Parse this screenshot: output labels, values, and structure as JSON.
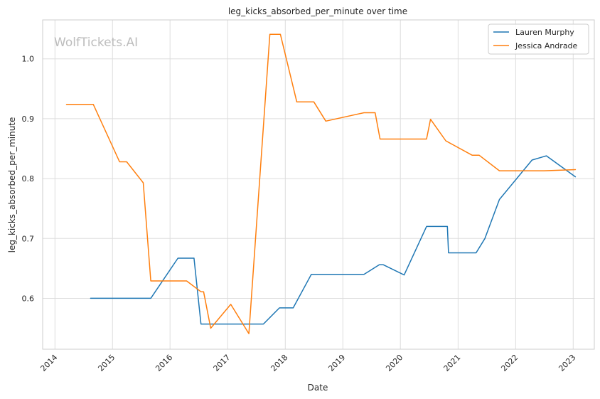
{
  "chart_data": {
    "type": "line",
    "title": "leg_kicks_absorbed_per_minute over time",
    "xlabel": "Date",
    "ylabel": "leg_kicks_absorbed_per_minute",
    "xlim": [
      "2013-10-15",
      "2023-05-15"
    ],
    "ylim": [
      0.515,
      1.065
    ],
    "x_ticks": [
      "2014",
      "2015",
      "2016",
      "2017",
      "2018",
      "2019",
      "2020",
      "2021",
      "2022",
      "2023"
    ],
    "y_ticks": [
      0.6,
      0.7,
      0.8,
      0.9,
      1.0
    ],
    "y_tick_labels": [
      "0.6",
      "0.7",
      "0.8",
      "0.9",
      "1.0"
    ],
    "grid": true,
    "legend_position": "top-right",
    "watermark": "WolfTickets.AI",
    "series": [
      {
        "name": "Lauren Murphy",
        "color": "#1f77b4",
        "points": [
          [
            "2014-08-15",
            0.6
          ],
          [
            "2015-09-01",
            0.6
          ],
          [
            "2016-02-20",
            0.667
          ],
          [
            "2016-06-01",
            0.667
          ],
          [
            "2016-07-15",
            0.557
          ],
          [
            "2017-08-15",
            0.557
          ],
          [
            "2017-11-25",
            0.584
          ],
          [
            "2018-02-20",
            0.584
          ],
          [
            "2018-06-15",
            0.64
          ],
          [
            "2019-05-15",
            0.64
          ],
          [
            "2019-08-20",
            0.656
          ],
          [
            "2019-09-15",
            0.656
          ],
          [
            "2020-01-25",
            0.639
          ],
          [
            "2020-06-15",
            0.72
          ],
          [
            "2020-10-25",
            0.72
          ],
          [
            "2020-11-01",
            0.676
          ],
          [
            "2021-04-25",
            0.676
          ],
          [
            "2021-06-20",
            0.7
          ],
          [
            "2021-09-20",
            0.765
          ],
          [
            "2022-04-15",
            0.831
          ],
          [
            "2022-07-15",
            0.838
          ],
          [
            "2023-01-15",
            0.803
          ]
        ]
      },
      {
        "name": "Jessica Andrade",
        "color": "#ff7f0e",
        "points": [
          [
            "2014-03-15",
            0.924
          ],
          [
            "2014-09-01",
            0.924
          ],
          [
            "2015-02-15",
            0.828
          ],
          [
            "2015-04-01",
            0.828
          ],
          [
            "2015-07-15",
            0.793
          ],
          [
            "2015-09-01",
            0.629
          ],
          [
            "2016-04-15",
            0.629
          ],
          [
            "2016-07-15",
            0.611
          ],
          [
            "2016-08-01",
            0.611
          ],
          [
            "2016-09-15",
            0.55
          ],
          [
            "2017-01-20",
            0.59
          ],
          [
            "2017-05-15",
            0.541
          ],
          [
            "2017-09-25",
            1.041
          ],
          [
            "2017-12-01",
            1.041
          ],
          [
            "2018-03-15",
            0.928
          ],
          [
            "2018-07-01",
            0.928
          ],
          [
            "2018-09-15",
            0.896
          ],
          [
            "2019-05-15",
            0.91
          ],
          [
            "2019-07-25",
            0.91
          ],
          [
            "2019-08-25",
            0.866
          ],
          [
            "2020-06-15",
            0.866
          ],
          [
            "2020-07-10",
            0.899
          ],
          [
            "2020-10-15",
            0.863
          ],
          [
            "2021-04-01",
            0.839
          ],
          [
            "2021-05-15",
            0.839
          ],
          [
            "2021-09-20",
            0.813
          ],
          [
            "2022-07-01",
            0.813
          ],
          [
            "2023-01-15",
            0.815
          ]
        ]
      }
    ]
  }
}
